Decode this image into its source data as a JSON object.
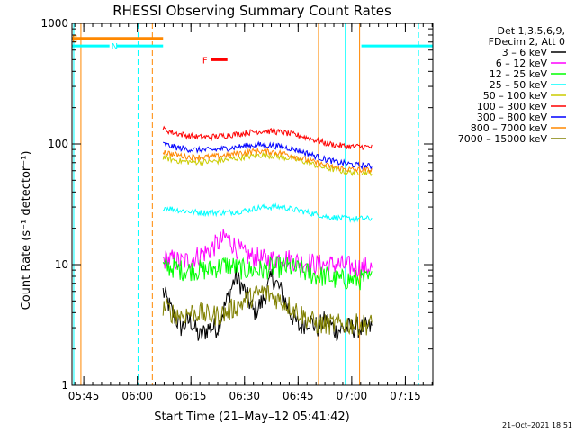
{
  "chart_data": {
    "type": "line",
    "title": "RHESSI Observing Summary Count Rates",
    "xlabel": "Start Time (21–May–12 05:41:42)",
    "ylabel": "Count Rate (s⁻¹ detector⁻¹)",
    "y_scale": "log",
    "ylim": [
      1,
      1000
    ],
    "xlim_minutes_after_0541": [
      0,
      101
    ],
    "x_tick_labels": [
      "05:45",
      "06:00",
      "06:15",
      "06:30",
      "06:45",
      "07:00",
      "07:15"
    ],
    "x_tick_minutes_after_0541": [
      3.3,
      18.3,
      33.3,
      48.3,
      63.3,
      78.3,
      93.3
    ],
    "y_tick_labels": [
      "1",
      "10",
      "100",
      "1000"
    ],
    "y_tick_values": [
      1,
      10,
      100,
      1000
    ],
    "legend_header": [
      "Det 1,3,5,6,9,",
      "FDecim 2, Att 0"
    ],
    "legend_position": "right",
    "series": [
      {
        "name": "3 – 6 keV",
        "color": "#000000",
        "x_start": 25.5,
        "x_end": 84,
        "values": [
          6,
          4,
          3,
          3.5,
          2.5,
          3,
          3,
          5,
          8,
          6,
          4,
          5,
          8,
          6,
          4,
          3,
          3.5,
          3,
          3.5,
          2.8,
          3,
          3,
          3,
          3
        ]
      },
      {
        "name": "6 – 12 keV",
        "color": "#ff00ff",
        "x_start": 25.5,
        "x_end": 84,
        "values": [
          11,
          11,
          10.5,
          11,
          12,
          13,
          15,
          17,
          14,
          12,
          11.5,
          11,
          11,
          11.5,
          11,
          10.5,
          10.5,
          10,
          10,
          10,
          9.8,
          9.5,
          9.5,
          9.5
        ]
      },
      {
        "name": "12 – 25 keV",
        "color": "#00ff00",
        "x_start": 25.5,
        "x_end": 84,
        "values": [
          9.5,
          9.5,
          9,
          9,
          9,
          9,
          9.5,
          10,
          9.5,
          9,
          9,
          9,
          9.5,
          9.5,
          9.5,
          9,
          8.5,
          8,
          8,
          7.5,
          7.5,
          7.5,
          7.5,
          7.5
        ]
      },
      {
        "name": "25 – 50 keV",
        "color": "#00ffff",
        "x_start": 25.5,
        "x_end": 84,
        "values": [
          30,
          29,
          28,
          27.5,
          27,
          27,
          27,
          27,
          27.5,
          28,
          29,
          30,
          30,
          30,
          29,
          28,
          27,
          26,
          25,
          24.5,
          24,
          24,
          24,
          24
        ]
      },
      {
        "name": "50 – 100 keV",
        "color": "#cccc00",
        "x_start": 25.5,
        "x_end": 84,
        "values": [
          78,
          74,
          72,
          71,
          71,
          71,
          72,
          74,
          76,
          78,
          80,
          81,
          80,
          78,
          76,
          73,
          70,
          66,
          63,
          61,
          59,
          58,
          58,
          58
        ]
      },
      {
        "name": "100 – 300 keV",
        "color": "#ff0000",
        "x_start": 25.5,
        "x_end": 84,
        "values": [
          133,
          125,
          120,
          116,
          114,
          114,
          116,
          118,
          120,
          123,
          126,
          128,
          127,
          125,
          121,
          117,
          112,
          106,
          101,
          98,
          96,
          95,
          95,
          94
        ]
      },
      {
        "name": "300 – 800 keV",
        "color": "#0000ff",
        "x_start": 25.5,
        "x_end": 84,
        "values": [
          100,
          95,
          92,
          90,
          89,
          89,
          90,
          92,
          94,
          96,
          98,
          98,
          97,
          95,
          92,
          88,
          83,
          78,
          74,
          71,
          69,
          67,
          66,
          65
        ]
      },
      {
        "name": "800 – 7000 keV",
        "color": "#ff8800",
        "x_start": 25.5,
        "x_end": 84,
        "values": [
          87,
          82,
          80,
          78,
          78,
          78,
          79,
          81,
          83,
          85,
          87,
          87,
          86,
          84,
          81,
          77,
          73,
          69,
          66,
          64,
          62,
          61,
          61,
          60
        ]
      },
      {
        "name": "7000 – 15000 keV",
        "color": "#808000",
        "x_start": 25.5,
        "x_end": 84,
        "values": [
          4.5,
          4,
          3.8,
          4,
          4,
          3.8,
          3.8,
          4,
          4.5,
          5,
          5.5,
          6,
          5.5,
          5,
          4.5,
          4,
          3.5,
          3.2,
          3.2,
          3.2,
          3.2,
          3.2,
          3.2,
          3.2
        ]
      }
    ],
    "flag_bars": [
      {
        "label": "E",
        "color": "#ff8800",
        "x_start": 0,
        "x_end": 25.5,
        "y": 750,
        "label_x": 0
      },
      {
        "label": "N",
        "color": "#00ffff",
        "x_start": 0,
        "x_end": 10.5,
        "y": 650,
        "label_x": 11
      },
      {
        "color": "#00ffff",
        "x_start": 12.5,
        "x_end": 25.5,
        "y": 650
      },
      {
        "color": "#00ffff",
        "x_start": 81,
        "x_end": 101,
        "y": 650
      },
      {
        "label": "F",
        "color": "#ff0000",
        "x_start": 39,
        "x_end": 43.5,
        "y": 500,
        "label_x": 36.5
      }
    ],
    "vertical_markers": [
      {
        "color": "#00ffff",
        "style": "solid",
        "x": 0.5
      },
      {
        "color": "#ff8800",
        "style": "solid",
        "x": 2.5
      },
      {
        "color": "#00ffff",
        "style": "dashed",
        "x": 18.5
      },
      {
        "color": "#ff8800",
        "style": "dashed",
        "x": 22.5
      },
      {
        "color": "#ff8800",
        "style": "solid",
        "x": 69
      },
      {
        "color": "#00ffff",
        "style": "solid",
        "x": 76.5
      },
      {
        "color": "#ff8800",
        "style": "solid",
        "x": 80.5
      },
      {
        "color": "#00ffff",
        "style": "dashed",
        "x": 97
      }
    ]
  },
  "footer_stamp": "21–Oct–2021 18:51"
}
